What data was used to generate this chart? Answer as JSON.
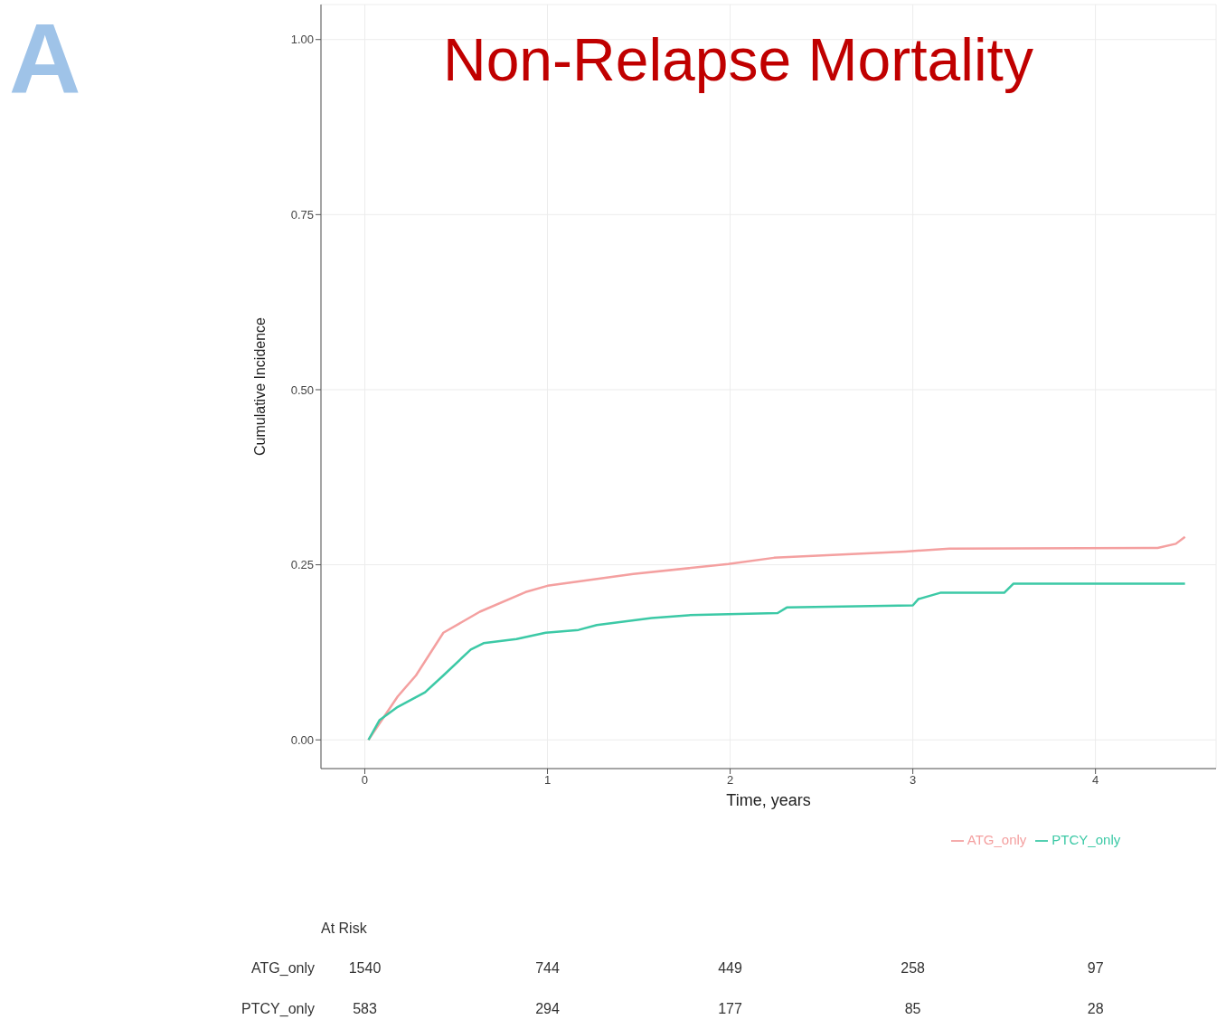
{
  "chart_data": {
    "type": "line",
    "title": "Non-Relapse Mortality",
    "xlabel": "Time, years",
    "ylabel": "Cumulative Incidence",
    "xlim": [
      -0.24,
      4.66
    ],
    "xticks": [
      0,
      1,
      2,
      3,
      4
    ],
    "ylim": [
      -0.041,
      1.05
    ],
    "yticks": [
      {
        "value": 0,
        "label": "0.00"
      },
      {
        "value": 0.25,
        "label": "0.25"
      },
      {
        "value": 0.5,
        "label": "0.50"
      },
      {
        "value": 0.75,
        "label": "0.75"
      },
      {
        "value": 1,
        "label": "1.00"
      }
    ],
    "grid": true,
    "legend": "bottom",
    "marker": "none",
    "line_style": "solid",
    "series": [
      {
        "name": "ATG_only",
        "color": "#f4a0a0",
        "x": [
          0.02,
          0.18,
          0.28,
          0.43,
          0.63,
          0.88,
          1.0,
          1.47,
          1.99,
          2.24,
          2.96,
          3.2,
          4.34,
          4.44,
          4.49
        ],
        "values": [
          0,
          0.062,
          0.092,
          0.153,
          0.183,
          0.211,
          0.22,
          0.237,
          0.251,
          0.26,
          0.269,
          0.273,
          0.274,
          0.28,
          0.29
        ]
      },
      {
        "name": "PTCY_only",
        "color": "#3cc9a6",
        "x": [
          0.02,
          0.08,
          0.18,
          0.33,
          0.43,
          0.58,
          0.65,
          0.83,
          0.99,
          1.17,
          1.27,
          1.57,
          1.77,
          2.26,
          2.31,
          3.0,
          3.03,
          3.15,
          3.5,
          3.55,
          4.49
        ],
        "values": [
          0,
          0.028,
          0.047,
          0.068,
          0.092,
          0.129,
          0.138,
          0.144,
          0.153,
          0.157,
          0.164,
          0.174,
          0.178,
          0.181,
          0.189,
          0.192,
          0.201,
          0.21,
          0.21,
          0.223,
          0.223
        ]
      }
    ],
    "annotations": [
      "A",
      "At Risk",
      "ATG_only",
      "1540",
      "744",
      "449",
      "258",
      "97",
      "PTCY_only",
      "583",
      "294",
      "177",
      "85",
      "28"
    ]
  }
}
